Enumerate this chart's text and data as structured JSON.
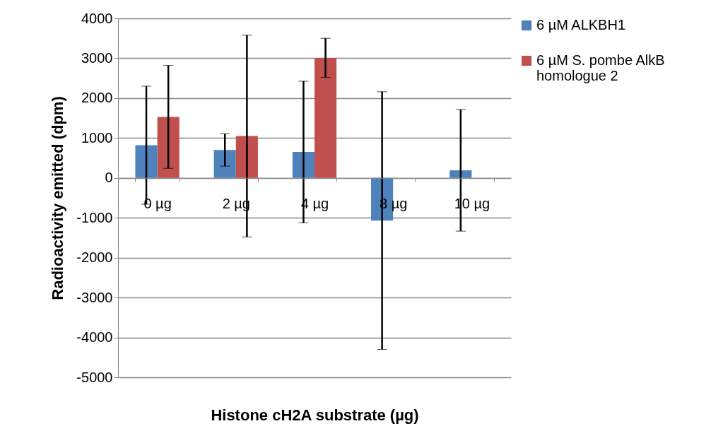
{
  "chart_data": {
    "type": "bar",
    "xlabel": "Histone cH2A substrate (µg)",
    "ylabel": "Radioactivity emitted (dpm)",
    "categories": [
      "0 µg",
      "2 µg",
      "4 µg",
      "8 µg",
      "10 µg"
    ],
    "series": [
      {
        "name": "6 µM ALKBH1",
        "color": "#4f81bd",
        "values": [
          820,
          700,
          650,
          -1070,
          190
        ],
        "errors": [
          1480,
          405,
          1775,
          3230,
          1525
        ]
      },
      {
        "name": "6 µM S. pombe AlkB homologue 2",
        "color": "#c0504d",
        "values": [
          1530,
          1050,
          3010,
          null,
          null
        ],
        "errors": [
          1290,
          2530,
          490,
          null,
          null
        ]
      }
    ],
    "ylim": [
      -5000,
      4000
    ],
    "yticks": [
      -5000,
      -4000,
      -3000,
      -2000,
      -1000,
      0,
      1000,
      2000,
      3000,
      4000
    ],
    "grid": "y",
    "legend": "right"
  }
}
